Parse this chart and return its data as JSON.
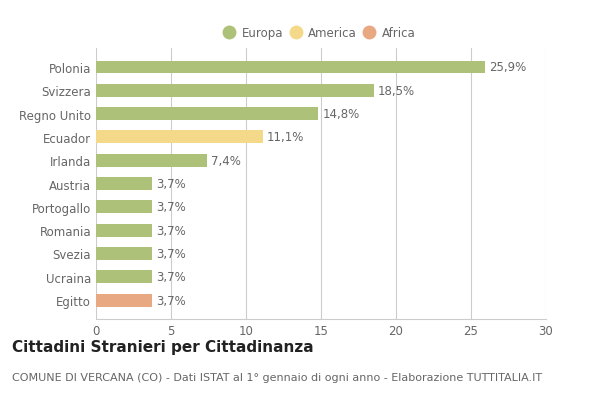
{
  "categories": [
    "Egitto",
    "Ucraina",
    "Svezia",
    "Romania",
    "Portogallo",
    "Austria",
    "Irlanda",
    "Ecuador",
    "Regno Unito",
    "Svizzera",
    "Polonia"
  ],
  "values": [
    3.7,
    3.7,
    3.7,
    3.7,
    3.7,
    3.7,
    7.4,
    11.1,
    14.8,
    18.5,
    25.9
  ],
  "labels": [
    "3,7%",
    "3,7%",
    "3,7%",
    "3,7%",
    "3,7%",
    "3,7%",
    "7,4%",
    "11,1%",
    "14,8%",
    "18,5%",
    "25,9%"
  ],
  "colors": [
    "#e8a882",
    "#adc178",
    "#adc178",
    "#adc178",
    "#adc178",
    "#adc178",
    "#adc178",
    "#f5d98b",
    "#adc178",
    "#adc178",
    "#adc178"
  ],
  "legend_labels": [
    "Europa",
    "America",
    "Africa"
  ],
  "legend_colors": [
    "#adc178",
    "#f5d98b",
    "#e8a882"
  ],
  "title": "Cittadini Stranieri per Cittadinanza",
  "subtitle": "COMUNE DI VERCANA (CO) - Dati ISTAT al 1° gennaio di ogni anno - Elaborazione TUTTITALIA.IT",
  "xlim": [
    0,
    30
  ],
  "xticks": [
    0,
    5,
    10,
    15,
    20,
    25,
    30
  ],
  "background_color": "#ffffff",
  "bar_height": 0.55,
  "grid_color": "#cccccc",
  "label_fontsize": 8.5,
  "tick_fontsize": 8.5,
  "title_fontsize": 11,
  "subtitle_fontsize": 8,
  "text_color": "#666666"
}
